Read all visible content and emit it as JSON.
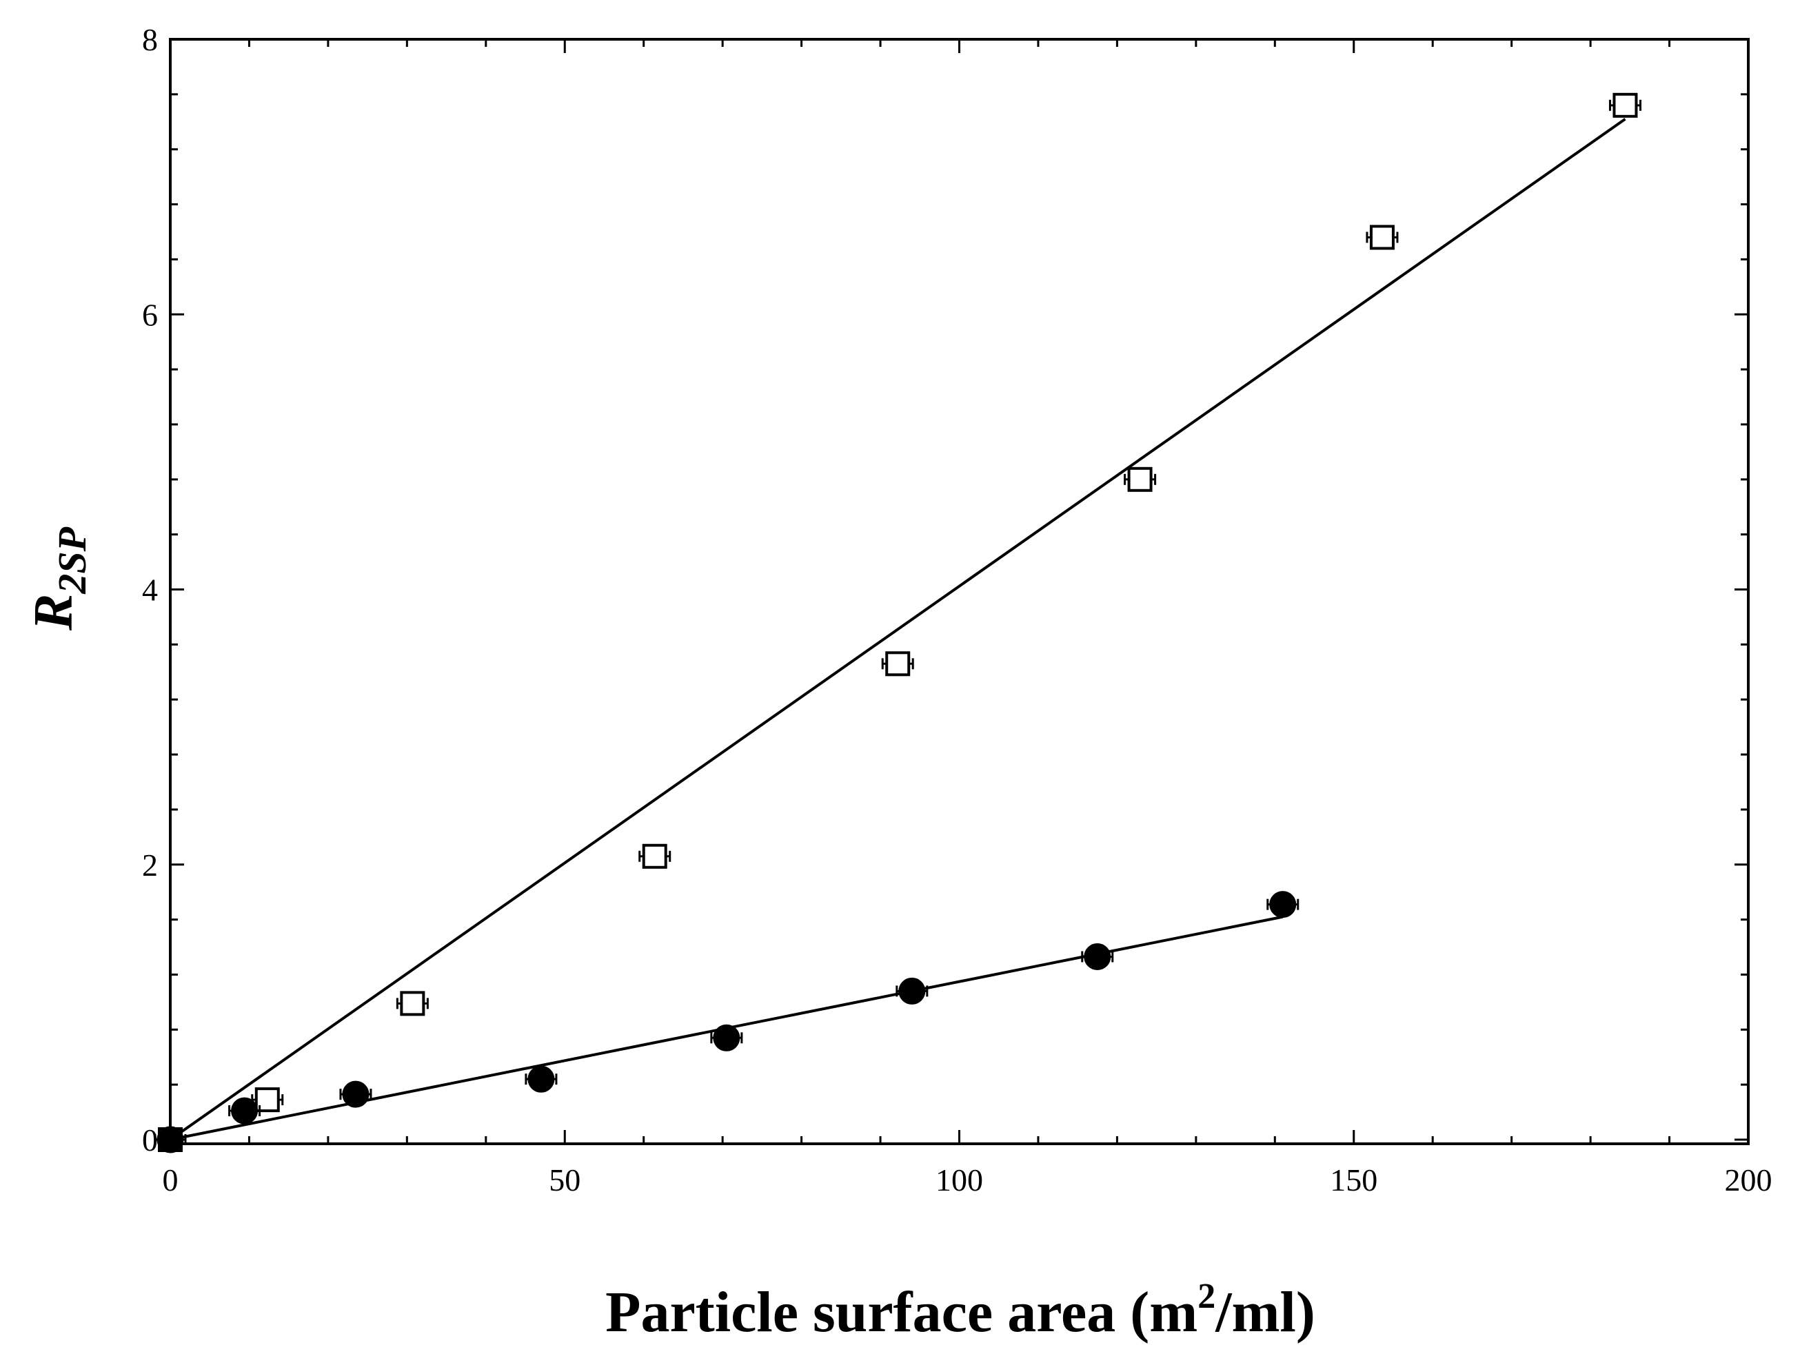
{
  "chart_data": {
    "type": "scatter",
    "xlabel": {
      "main": "Particle surface area (m",
      "superscript": "2",
      "tail": "/ml)"
    },
    "ylabel": {
      "main": "R",
      "subscript": "2SP"
    },
    "xlim": [
      0,
      200
    ],
    "ylim": [
      0,
      8
    ],
    "x_ticks": [
      0,
      50,
      100,
      150,
      200
    ],
    "y_ticks": [
      0,
      2,
      4,
      6,
      8
    ],
    "x_tick_labels": [
      "0",
      "50",
      "100",
      "150",
      "200"
    ],
    "y_tick_labels": [
      "0",
      "2",
      "4",
      "6",
      "8"
    ],
    "x_minor_step": 10,
    "y_minor_step": 0.4,
    "grid": false,
    "legend": "none",
    "series": [
      {
        "marker": "open-square",
        "x": [
          0,
          12.3,
          30.7,
          61.4,
          92.2,
          122.9,
          153.6,
          184.4
        ],
        "y": [
          0.0,
          0.29,
          0.99,
          2.06,
          3.46,
          4.8,
          6.56,
          7.52
        ],
        "fit_line": {
          "x": [
            0,
            184.4
          ],
          "y": [
            0,
            7.42
          ]
        }
      },
      {
        "marker": "filled-circle",
        "x": [
          0,
          9.4,
          23.5,
          47.0,
          70.5,
          94.0,
          117.5,
          141.0
        ],
        "y": [
          0.0,
          0.21,
          0.33,
          0.44,
          0.74,
          1.08,
          1.33,
          1.71
        ],
        "fit_line": {
          "x": [
            0,
            141.0
          ],
          "y": [
            0,
            1.62
          ]
        }
      }
    ]
  }
}
